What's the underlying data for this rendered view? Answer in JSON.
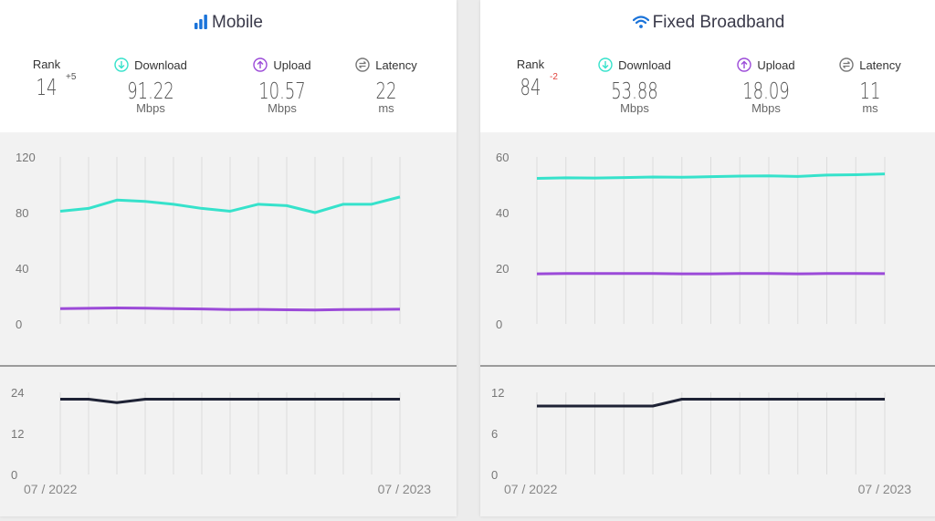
{
  "panels": [
    {
      "title": "Mobile",
      "icon": "signal-bars-icon",
      "stats": {
        "rank_label": "Rank",
        "rank": "14",
        "rank_delta": "+5",
        "rank_delta_color": "#555555",
        "download_label": "Download",
        "download": "91.22",
        "download_unit": "Mbps",
        "upload_label": "Upload",
        "upload": "10.57",
        "upload_unit": "Mbps",
        "latency_label": "Latency",
        "latency": "22",
        "latency_unit": "ms"
      },
      "x_start_label": "07 / 2022",
      "x_end_label": "07 / 2023"
    },
    {
      "title": "Fixed Broadband",
      "icon": "wifi-icon",
      "stats": {
        "rank_label": "Rank",
        "rank": "84",
        "rank_delta": "-2",
        "rank_delta_color": "#e0403a",
        "download_label": "Download",
        "download": "53.88",
        "download_unit": "Mbps",
        "upload_label": "Upload",
        "upload": "18.09",
        "upload_unit": "Mbps",
        "latency_label": "Latency",
        "latency": "11",
        "latency_unit": "ms"
      },
      "x_start_label": "07 / 2022",
      "x_end_label": "07 / 2023"
    }
  ],
  "colors": {
    "download": "#36e2cb",
    "upload": "#9b4ad8",
    "latency": "#1e2235",
    "icon_blue": "#1a73d9"
  },
  "chart_data": [
    {
      "type": "line",
      "panel": "Mobile",
      "categories": [
        "07/2022",
        "08/2022",
        "09/2022",
        "10/2022",
        "11/2022",
        "12/2022",
        "01/2023",
        "02/2023",
        "03/2023",
        "04/2023",
        "05/2023",
        "06/2023",
        "07/2023"
      ],
      "ylim": [
        0,
        120
      ],
      "yticks": [
        0,
        40,
        80,
        120
      ],
      "series": [
        {
          "key": "download",
          "values": [
            81,
            83,
            89,
            88,
            86,
            83,
            81,
            86,
            85,
            80,
            86,
            86,
            91.22
          ]
        },
        {
          "key": "upload",
          "values": [
            11,
            11.2,
            11.5,
            11.3,
            11,
            10.7,
            10.3,
            10.4,
            10.2,
            10,
            10.3,
            10.4,
            10.57
          ]
        }
      ],
      "latency": {
        "ylim": [
          0,
          24
        ],
        "yticks": [
          0,
          12,
          24
        ],
        "values": [
          22,
          22,
          21,
          22,
          22,
          22,
          22,
          22,
          22,
          22,
          22,
          22,
          22
        ]
      }
    },
    {
      "type": "line",
      "panel": "Fixed Broadband",
      "categories": [
        "07/2022",
        "08/2022",
        "09/2022",
        "10/2022",
        "11/2022",
        "12/2022",
        "01/2023",
        "02/2023",
        "03/2023",
        "04/2023",
        "05/2023",
        "06/2023",
        "07/2023"
      ],
      "ylim": [
        0,
        60
      ],
      "yticks": [
        0,
        20,
        40,
        60
      ],
      "series": [
        {
          "key": "download",
          "values": [
            52.3,
            52.5,
            52.4,
            52.6,
            52.8,
            52.7,
            52.9,
            53.1,
            53.2,
            53,
            53.5,
            53.6,
            53.88
          ]
        },
        {
          "key": "upload",
          "values": [
            18,
            18.1,
            18.1,
            18.1,
            18.1,
            18,
            18,
            18.1,
            18.1,
            18,
            18.1,
            18.1,
            18.09
          ]
        }
      ],
      "latency": {
        "ylim": [
          0,
          12
        ],
        "yticks": [
          0,
          6,
          12
        ],
        "values": [
          10,
          10,
          10,
          10,
          10,
          11,
          11,
          11,
          11,
          11,
          11,
          11,
          11
        ]
      }
    }
  ]
}
